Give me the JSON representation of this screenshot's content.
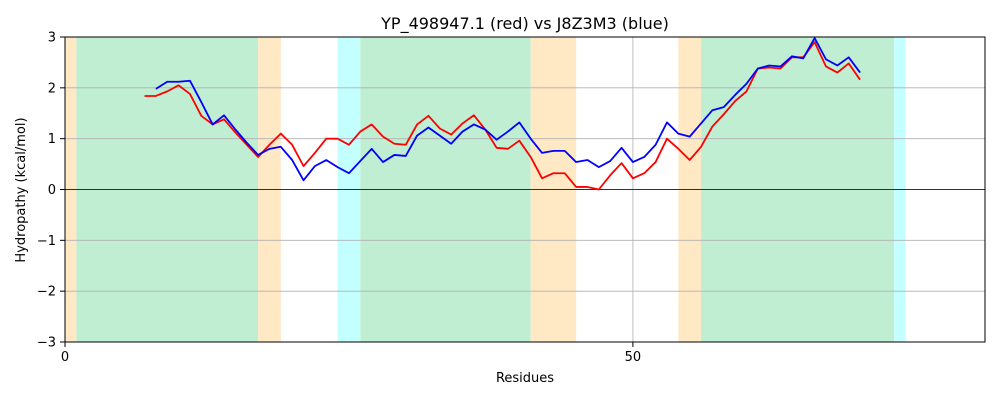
{
  "chart_data": {
    "type": "line",
    "title": "YP_498947.1 (red) vs J8Z3M3 (blue)",
    "xlabel": "Residues",
    "ylabel": "Hydropathy (kcal/mol)",
    "xlim": [
      0,
      81
    ],
    "ylim": [
      -3,
      3
    ],
    "xticks": [
      0,
      50
    ],
    "yticks": [
      -3,
      -2,
      -1,
      0,
      1,
      2,
      3
    ],
    "grid": true,
    "legend": "none",
    "zero_line": true,
    "regions": [
      {
        "start": 0,
        "end": 1,
        "color": "#ffe8c4"
      },
      {
        "start": 1,
        "end": 17,
        "color": "#c0eed2"
      },
      {
        "start": 17,
        "end": 19,
        "color": "#ffe8c4"
      },
      {
        "start": 24,
        "end": 26,
        "color": "#c4ffff"
      },
      {
        "start": 26,
        "end": 41,
        "color": "#c0eed2"
      },
      {
        "start": 41,
        "end": 45,
        "color": "#ffe8c4"
      },
      {
        "start": 54,
        "end": 56,
        "color": "#ffe8c4"
      },
      {
        "start": 56,
        "end": 73,
        "color": "#c0eed2"
      },
      {
        "start": 73,
        "end": 74,
        "color": "#c4ffff"
      }
    ],
    "series": [
      {
        "color": "#ff0000",
        "x": [
          7,
          8,
          9,
          10,
          11,
          12,
          13,
          14,
          15,
          16,
          17,
          18,
          19,
          20,
          21,
          22,
          23,
          24,
          25,
          26,
          27,
          28,
          29,
          30,
          31,
          32,
          33,
          34,
          35,
          36,
          37,
          38,
          39,
          40,
          41,
          42,
          43,
          44,
          45,
          46,
          47,
          48,
          49,
          50,
          51,
          52,
          53,
          54,
          55,
          56,
          57,
          58,
          59,
          60,
          61,
          62,
          63,
          64,
          65,
          66,
          67,
          68,
          69,
          70
        ],
        "values": [
          1.84,
          1.84,
          1.93,
          2.05,
          1.88,
          1.45,
          1.28,
          1.38,
          1.12,
          0.88,
          0.64,
          0.88,
          1.1,
          0.88,
          0.46,
          0.72,
          1.0,
          1.0,
          0.88,
          1.14,
          1.28,
          1.04,
          0.9,
          0.88,
          1.28,
          1.45,
          1.2,
          1.08,
          1.3,
          1.46,
          1.18,
          0.82,
          0.8,
          0.96,
          0.64,
          0.22,
          0.32,
          0.32,
          0.05,
          0.05,
          0.0,
          0.28,
          0.52,
          0.22,
          0.32,
          0.54,
          1.0,
          0.8,
          0.58,
          0.84,
          1.24,
          1.48,
          1.74,
          1.93,
          2.38,
          2.4,
          2.38,
          2.6,
          2.6,
          2.9,
          2.42,
          2.3,
          2.48,
          2.16
        ]
      },
      {
        "color": "#0000ff",
        "x": [
          8,
          9,
          10,
          11,
          12,
          13,
          14,
          15,
          16,
          17,
          18,
          19,
          20,
          21,
          22,
          23,
          24,
          25,
          26,
          27,
          28,
          29,
          30,
          31,
          32,
          33,
          34,
          35,
          36,
          37,
          38,
          39,
          40,
          41,
          42,
          43,
          44,
          45,
          46,
          47,
          48,
          49,
          50,
          51,
          52,
          53,
          54,
          55,
          56,
          57,
          58,
          59,
          60,
          61,
          62,
          63,
          64,
          65,
          66,
          67,
          68,
          69,
          70
        ],
        "values": [
          1.98,
          2.12,
          2.12,
          2.14,
          1.72,
          1.28,
          1.46,
          1.18,
          0.92,
          0.68,
          0.8,
          0.84,
          0.58,
          0.18,
          0.46,
          0.58,
          0.44,
          0.32,
          0.56,
          0.8,
          0.54,
          0.68,
          0.66,
          1.06,
          1.22,
          1.06,
          0.9,
          1.14,
          1.28,
          1.18,
          0.98,
          1.14,
          1.32,
          1.0,
          0.72,
          0.76,
          0.76,
          0.54,
          0.58,
          0.44,
          0.56,
          0.82,
          0.54,
          0.64,
          0.88,
          1.32,
          1.1,
          1.04,
          1.3,
          1.56,
          1.62,
          1.86,
          2.08,
          2.38,
          2.44,
          2.42,
          2.62,
          2.58,
          2.98,
          2.56,
          2.44,
          2.6,
          2.3
        ]
      }
    ]
  }
}
